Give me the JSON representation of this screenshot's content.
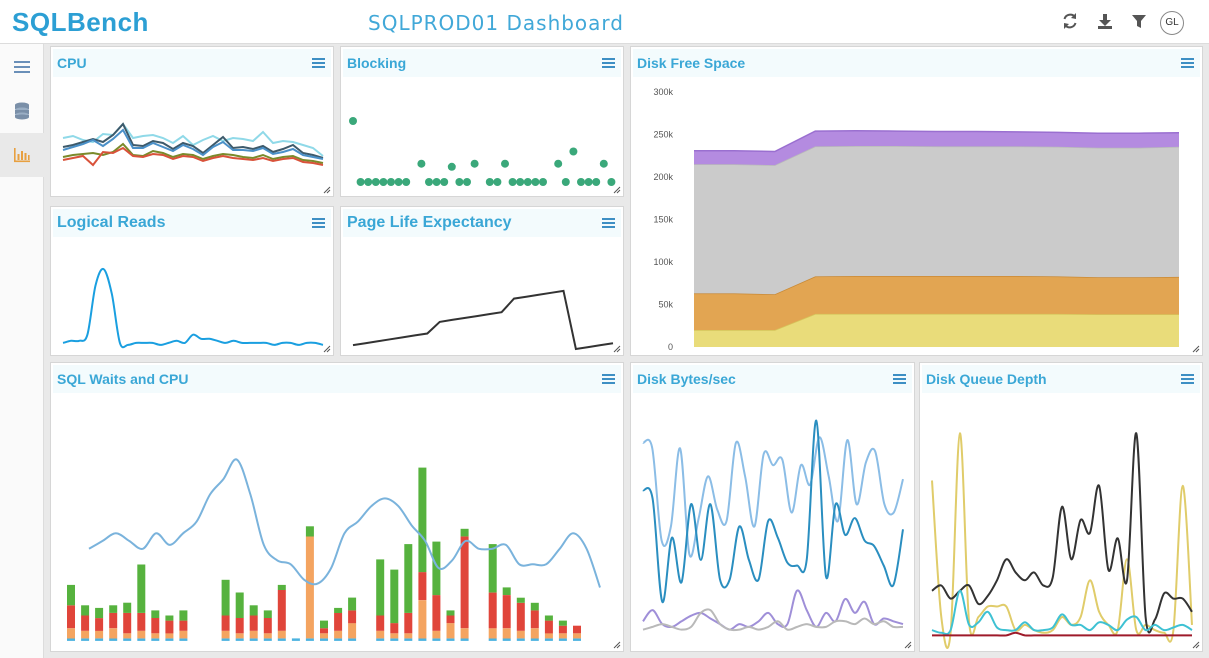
{
  "app": {
    "logo": "SQLBench",
    "title": "SQLPROD01 Dashboard",
    "user_initials": "GL"
  },
  "toolbar": {
    "icons": [
      "refresh-icon",
      "download-icon",
      "filter-icon"
    ]
  },
  "sidebar": {
    "items": [
      {
        "icon": "hamburger-menu-icon",
        "active": false
      },
      {
        "icon": "database-icon",
        "active": false
      },
      {
        "icon": "bar-chart-icon",
        "active": true
      }
    ]
  },
  "colors": {
    "accent": "#3aa7d6",
    "green": "#3aa87a",
    "orange_icon": "#e8a040"
  },
  "panels": {
    "cpu": {
      "title": "CPU"
    },
    "blocking": {
      "title": "Blocking"
    },
    "disk_free_space": {
      "title": "Disk Free Space"
    },
    "logical_reads": {
      "title": "Logical Reads"
    },
    "ple": {
      "title": "Page Life Expectancy"
    },
    "sql_waits": {
      "title": "SQL Waits and CPU"
    },
    "disk_bytes": {
      "title": "Disk Bytes/sec"
    },
    "disk_queue": {
      "title": "Disk Queue Depth"
    }
  },
  "chart_data": [
    {
      "id": "cpu",
      "type": "line",
      "x": [
        0,
        1,
        2,
        3,
        4,
        5,
        6,
        7,
        8,
        9,
        10,
        11,
        12,
        13,
        14,
        15,
        16,
        17,
        18,
        19,
        20,
        21,
        22,
        23,
        24,
        25,
        26
      ],
      "series": [
        {
          "color": "#8fd9e8",
          "values": [
            44,
            46,
            42,
            40,
            48,
            47,
            58,
            44,
            46,
            47,
            44,
            39,
            46,
            37,
            42,
            46,
            41,
            44,
            43,
            41,
            50,
            39,
            41,
            40,
            37,
            34,
            26
          ]
        },
        {
          "color": "#3d5a6b",
          "values": [
            35,
            37,
            40,
            43,
            40,
            47,
            58,
            37,
            36,
            41,
            39,
            33,
            39,
            36,
            29,
            37,
            45,
            34,
            35,
            33,
            36,
            30,
            33,
            37,
            29,
            27,
            24
          ]
        },
        {
          "color": "#4a90c8",
          "values": [
            32,
            35,
            38,
            42,
            36,
            43,
            52,
            34,
            34,
            39,
            35,
            31,
            37,
            33,
            27,
            35,
            40,
            32,
            32,
            31,
            34,
            28,
            30,
            33,
            27,
            25,
            23
          ]
        },
        {
          "color": "#7a8a2a",
          "values": [
            25,
            27,
            28,
            29,
            27,
            30,
            38,
            27,
            26,
            31,
            29,
            25,
            28,
            27,
            23,
            26,
            28,
            27,
            25,
            24,
            27,
            23,
            25,
            26,
            22,
            21,
            19
          ]
        },
        {
          "color": "#d9523a",
          "values": [
            22,
            24,
            26,
            17,
            30,
            29,
            34,
            26,
            25,
            28,
            27,
            23,
            26,
            25,
            21,
            24,
            26,
            24,
            23,
            22,
            24,
            21,
            23,
            24,
            20,
            19,
            17
          ]
        }
      ]
    },
    {
      "id": "blocking",
      "type": "scatter",
      "color": "#3aa87a",
      "points": [
        [
          0,
          1
        ],
        [
          1,
          0
        ],
        [
          2,
          0
        ],
        [
          3,
          0
        ],
        [
          4,
          0
        ],
        [
          5,
          0
        ],
        [
          6,
          0
        ],
        [
          7,
          0
        ],
        [
          9,
          0.3
        ],
        [
          10,
          0
        ],
        [
          11,
          0
        ],
        [
          12,
          0
        ],
        [
          13,
          0.25
        ],
        [
          14,
          0
        ],
        [
          15,
          0
        ],
        [
          16,
          0.3
        ],
        [
          18,
          0
        ],
        [
          19,
          0
        ],
        [
          20,
          0.3
        ],
        [
          21,
          0
        ],
        [
          22,
          0
        ],
        [
          23,
          0
        ],
        [
          24,
          0
        ],
        [
          25,
          0
        ],
        [
          27,
          0.3
        ],
        [
          28,
          0
        ],
        [
          29,
          0.5
        ],
        [
          30,
          0
        ],
        [
          31,
          0
        ],
        [
          32,
          0
        ],
        [
          33,
          0.3
        ],
        [
          34,
          0
        ]
      ]
    },
    {
      "id": "disk_free_space",
      "type": "area",
      "ylim": [
        0,
        300000
      ],
      "y_ticks": [
        "300k",
        "250k",
        "200k",
        "150k",
        "100k",
        "50k",
        "0"
      ],
      "x": [
        0,
        1,
        2,
        3,
        4,
        5,
        6,
        7,
        8,
        9,
        10,
        11,
        12
      ],
      "series": [
        {
          "color": "#e9dc7a",
          "values": [
            20000,
            20000,
            20000,
            39000,
            39000,
            39000,
            39000,
            39000,
            39000,
            39000,
            38500,
            38500,
            38500
          ]
        },
        {
          "color": "#e2a552",
          "values": [
            43000,
            43000,
            42000,
            44000,
            44500,
            44500,
            44500,
            44500,
            44500,
            44000,
            43500,
            43500,
            44000
          ]
        },
        {
          "color": "#cbcbcb",
          "values": [
            152000,
            152000,
            152000,
            153000,
            153000,
            153000,
            152500,
            152500,
            152500,
            152500,
            152500,
            152500,
            153000
          ]
        },
        {
          "color": "#b48be0",
          "values": [
            16000,
            16000,
            16000,
            18000,
            18000,
            17500,
            17500,
            17500,
            17000,
            17000,
            17000,
            17000,
            16500
          ]
        }
      ]
    },
    {
      "id": "logical_reads",
      "type": "line",
      "color": "#1a9fe0",
      "values": [
        2,
        3,
        3,
        6,
        30,
        38,
        26,
        2,
        1,
        2,
        2,
        2,
        1,
        2,
        3,
        2,
        6,
        4,
        4,
        3,
        2,
        3,
        2,
        2,
        2,
        2,
        1,
        2,
        2,
        1,
        2,
        2,
        1
      ]
    },
    {
      "id": "ple",
      "type": "line",
      "color": "#333333",
      "values": [
        2,
        3,
        4,
        5,
        6,
        7,
        8,
        14,
        15,
        16,
        17,
        18,
        19,
        26,
        27,
        28,
        29,
        30,
        0,
        1,
        2,
        3
      ]
    },
    {
      "id": "sql_waits",
      "type": "bar",
      "stack_colors": [
        "#4cb3e0",
        "#f4a460",
        "#e0453a",
        "#56b23e"
      ],
      "stacks": [
        [
          1,
          4,
          9,
          8
        ],
        [
          1,
          3,
          6,
          4
        ],
        [
          1,
          3,
          5,
          4
        ],
        [
          1,
          4,
          6,
          3
        ],
        [
          1,
          2,
          8,
          4
        ],
        [
          1,
          3,
          7,
          19
        ],
        [
          1,
          2,
          6,
          3
        ],
        [
          1,
          2,
          5,
          2
        ],
        [
          1,
          3,
          4,
          4
        ],
        [
          0,
          0,
          0,
          0
        ],
        [
          0,
          0,
          0,
          0
        ],
        [
          1,
          3,
          6,
          14
        ],
        [
          1,
          2,
          6,
          10
        ],
        [
          1,
          3,
          6,
          4
        ],
        [
          1,
          2,
          6,
          3
        ],
        [
          1,
          3,
          16,
          2
        ],
        [
          1,
          0,
          0,
          0
        ],
        [
          1,
          40,
          0,
          4
        ],
        [
          1,
          2,
          2,
          3
        ],
        [
          1,
          3,
          7,
          2
        ],
        [
          1,
          6,
          5,
          5
        ],
        [
          0,
          0,
          0,
          0
        ],
        [
          1,
          3,
          6,
          22
        ],
        [
          1,
          2,
          4,
          21
        ],
        [
          1,
          2,
          8,
          27
        ],
        [
          1,
          15,
          11,
          41
        ],
        [
          1,
          3,
          14,
          21
        ],
        [
          1,
          6,
          3,
          2
        ],
        [
          1,
          4,
          36,
          3
        ],
        [
          0,
          0,
          0,
          0
        ],
        [
          1,
          4,
          14,
          19
        ],
        [
          1,
          4,
          13,
          3
        ],
        [
          1,
          3,
          11,
          2
        ],
        [
          1,
          4,
          7,
          3
        ],
        [
          1,
          2,
          5,
          2
        ],
        [
          1,
          2,
          3,
          2
        ],
        [
          1,
          2,
          3,
          0
        ]
      ],
      "line_color": "#7ab3dc",
      "line_values": [
        49,
        51,
        53,
        51,
        49,
        53,
        50,
        53,
        56,
        63,
        67,
        72,
        63,
        50,
        46,
        45,
        41,
        40,
        44,
        53,
        56,
        60,
        62,
        60,
        55,
        51,
        44,
        46,
        51,
        49,
        49,
        50,
        45,
        45,
        45,
        49,
        53,
        49,
        39
      ]
    },
    {
      "id": "disk_bytes",
      "type": "line",
      "series": [
        {
          "color": "#8bbde6",
          "values": [
            70,
            68,
            35,
            40,
            68,
            30,
            43,
            58,
            46,
            42,
            70,
            58,
            40,
            66,
            62,
            64,
            45,
            62,
            55,
            72,
            58,
            42,
            71,
            48,
            63,
            67,
            48,
            45,
            57
          ]
        },
        {
          "color": "#2a8ec0",
          "values": [
            53,
            50,
            13,
            36,
            20,
            48,
            28,
            48,
            21,
            21,
            40,
            28,
            21,
            42,
            36,
            27,
            26,
            28,
            78,
            22,
            48,
            37,
            43,
            35,
            33,
            26,
            19,
            39
          ]
        },
        {
          "color": "#9f8fd8",
          "values": [
            6,
            10,
            5,
            4,
            6,
            8,
            9,
            7,
            5,
            3,
            5,
            4,
            6,
            9,
            5,
            5,
            17,
            10,
            4,
            9,
            6,
            14,
            9,
            13,
            5,
            7,
            6,
            5
          ]
        },
        {
          "color": "#b9b9b9",
          "values": [
            3,
            4,
            5,
            4,
            3,
            4,
            9,
            10,
            5,
            3,
            3,
            4,
            3,
            4,
            6,
            3,
            4,
            5,
            4,
            4,
            6,
            6,
            5,
            7,
            5,
            6,
            4,
            4
          ]
        }
      ]
    },
    {
      "id": "disk_queue",
      "type": "line",
      "series": [
        {
          "color": "#e0cc6a",
          "values": [
            60,
            8,
            2,
            78,
            6,
            8,
            12,
            12,
            12,
            3,
            5,
            3,
            2,
            3,
            8,
            5,
            8,
            22,
            10,
            5,
            3,
            30,
            3,
            5,
            3,
            2,
            3,
            58,
            5
          ]
        },
        {
          "color": "#333333",
          "values": [
            18,
            20,
            15,
            18,
            20,
            13,
            16,
            22,
            30,
            25,
            22,
            25,
            20,
            23,
            50,
            30,
            45,
            40,
            58,
            26,
            38,
            22,
            78,
            8,
            7,
            17,
            15,
            15,
            10
          ]
        },
        {
          "color": "#3ec1d3",
          "values": [
            3,
            2,
            3,
            18,
            5,
            6,
            10,
            4,
            3,
            3,
            6,
            3,
            3,
            4,
            9,
            5,
            5,
            3,
            6,
            5,
            3,
            7,
            8,
            3,
            5,
            3,
            4,
            5,
            3
          ]
        },
        {
          "color": "#9e1a2a",
          "values": [
            1,
            1,
            1,
            1,
            1,
            1,
            1,
            1,
            1,
            2,
            1,
            1,
            1,
            1,
            1,
            1,
            1,
            1,
            1,
            1,
            1,
            1,
            1,
            1,
            1,
            1,
            1,
            1,
            1
          ]
        }
      ]
    }
  ]
}
